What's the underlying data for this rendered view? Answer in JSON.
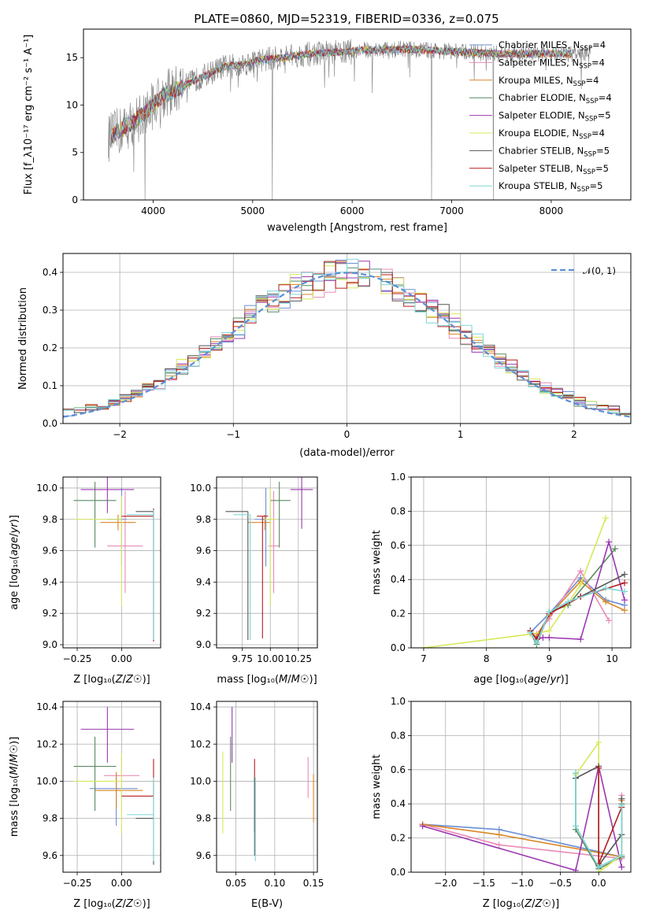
{
  "title": "PLATE=0860, MJD=52319, FIBERID=0336, z=0.075",
  "colors": {
    "Chabrier MILES": "#6b8fd6",
    "Salpeter MILES": "#e98bb8",
    "Kroupa MILES": "#d98728",
    "Chabrier ELODIE": "#5a8a62",
    "Salpeter ELODIE": "#9b38b0",
    "Kroupa ELODIE": "#d7e85a",
    "Chabrier STELIB": "#555555",
    "Salpeter STELIB": "#b31d1d",
    "Kroupa STELIB": "#7fd6d6",
    "gaussian": "#5b8fd6",
    "data": "#808080"
  },
  "chart_data": [
    {
      "id": "spectrum",
      "type": "line",
      "xlabel": "wavelength [Angstrom, rest frame]",
      "ylabel": "Flux [f_λ10⁻¹⁷ erg cm⁻² s⁻¹ A⁻¹]",
      "xlim": [
        3300,
        8800
      ],
      "ylim": [
        0,
        18
      ],
      "xticks": [
        4000,
        5000,
        6000,
        7000,
        8000
      ],
      "yticks": [
        0,
        5,
        10,
        15
      ],
      "continuum": {
        "x": [
          3550,
          3700,
          3900,
          4100,
          4300,
          4500,
          4700,
          4900,
          5100,
          5300,
          5500,
          5700,
          5900,
          6100,
          6300,
          6500,
          6700,
          6900,
          7100,
          7300,
          7400
        ],
        "y": [
          6.5,
          7.5,
          9,
          11,
          12,
          13,
          14,
          14.3,
          14.8,
          15,
          15.3,
          15.5,
          15.6,
          15.8,
          15.8,
          15.9,
          15.8,
          15.7,
          15.6,
          15.5,
          15.4
        ]
      },
      "data_x_range": [
        3550,
        8400
      ],
      "spikes": [
        {
          "x": 3920,
          "y": 0
        },
        {
          "x": 5200,
          "y": 0
        },
        {
          "x": 6800,
          "y": 0
        },
        {
          "x": 7420,
          "y": 0
        }
      ],
      "legend": [
        {
          "text": "Chabrier MILES, N",
          "sub": "SSP",
          "tail": "=4",
          "model": "Chabrier MILES"
        },
        {
          "text": "Salpeter MILES, N",
          "sub": "SSP",
          "tail": "=4",
          "model": "Salpeter MILES"
        },
        {
          "text": "Kroupa MILES, N",
          "sub": "SSP",
          "tail": "=4",
          "model": "Kroupa MILES"
        },
        {
          "text": "Chabrier ELODIE, N",
          "sub": "SSP",
          "tail": "=4",
          "model": "Chabrier ELODIE"
        },
        {
          "text": "Salpeter ELODIE, N",
          "sub": "SSP",
          "tail": "=5",
          "model": "Salpeter ELODIE"
        },
        {
          "text": "Kroupa ELODIE, N",
          "sub": "SSP",
          "tail": "=4",
          "model": "Kroupa ELODIE"
        },
        {
          "text": "Chabrier STELIB, N",
          "sub": "SSP",
          "tail": "=5",
          "model": "Chabrier STELIB"
        },
        {
          "text": "Salpeter STELIB, N",
          "sub": "SSP",
          "tail": "=5",
          "model": "Salpeter STELIB"
        },
        {
          "text": "Kroupa STELIB, N",
          "sub": "SSP",
          "tail": "=5",
          "model": "Kroupa STELIB"
        }
      ]
    },
    {
      "id": "residuals",
      "type": "histogram",
      "xlabel": "(data-model)/error",
      "ylabel": "Normed distribution",
      "xlim": [
        -2.5,
        2.5
      ],
      "ylim": [
        0,
        0.45
      ],
      "xticks": [
        -2,
        -1,
        0,
        1,
        2
      ],
      "yticks": [
        0.0,
        0.1,
        0.2,
        0.3,
        0.4
      ],
      "bin_width": 0.1,
      "grid": true,
      "legend_label": "𝒩(0, 1)"
    },
    {
      "id": "age_vs_Z",
      "type": "errorbar",
      "xlabel": "Z [log₁₀(Z/Z☉)]",
      "ylabel": "age  [log₁₀(age/yr)]",
      "xlim": [
        -0.33,
        0.22
      ],
      "ylim": [
        8.98,
        10.07
      ],
      "xticks": [
        -0.25,
        0.0
      ],
      "yticks": [
        9.0,
        9.2,
        9.4,
        9.6,
        9.8,
        10.0
      ],
      "points": [
        {
          "model": "Chabrier MILES",
          "x": 0.0,
          "xerr": [
            0.08,
            0.03
          ],
          "y": 9.8,
          "yerr": [
            0.3,
            0.2
          ]
        },
        {
          "model": "Salpeter MILES",
          "x": 0.02,
          "xerr": [
            0.1,
            0.1
          ],
          "y": 9.63,
          "yerr": [
            0.3,
            0.35
          ]
        },
        {
          "model": "Kroupa MILES",
          "x": -0.02,
          "xerr": [
            0.1,
            0.1
          ],
          "y": 9.78,
          "yerr": [
            0.05,
            0.05
          ]
        },
        {
          "model": "Chabrier ELODIE",
          "x": -0.15,
          "xerr": [
            0.12,
            0.12
          ],
          "y": 9.92,
          "yerr": [
            0.3,
            0.12
          ]
        },
        {
          "model": "Salpeter ELODIE",
          "x": -0.08,
          "xerr": [
            0.15,
            0.15
          ],
          "y": 9.99,
          "yerr": [
            0.15,
            0.1
          ]
        },
        {
          "model": "Kroupa ELODIE",
          "x": 0.0,
          "xerr": [
            0.27,
            0.0
          ],
          "y": 9.8,
          "yerr": [
            0.55,
            0.15
          ]
        },
        {
          "model": "Chabrier STELIB",
          "x": 0.18,
          "xerr": [
            0.1,
            0.0
          ],
          "y": 9.85,
          "yerr": [
            0.82,
            0.0
          ]
        },
        {
          "model": "Salpeter STELIB",
          "x": 0.18,
          "xerr": [
            0.18,
            0.0
          ],
          "y": 9.82,
          "yerr": [
            0.8,
            0.05
          ]
        },
        {
          "model": "Kroupa STELIB",
          "x": 0.18,
          "xerr": [
            0.15,
            0.0
          ],
          "y": 9.83,
          "yerr": [
            0.8,
            0.03
          ]
        }
      ]
    },
    {
      "id": "age_vs_mass",
      "type": "errorbar",
      "xlabel": "mass [log₁₀(M/M☉)]",
      "ylabel": "",
      "xlim": [
        9.52,
        10.42
      ],
      "ylim": [
        8.98,
        10.07
      ],
      "xticks": [
        9.75,
        10.0,
        10.25
      ],
      "yticks": [
        9.0,
        9.2,
        9.4,
        9.6,
        9.8,
        10.0
      ],
      "points": [
        {
          "model": "Chabrier MILES",
          "x": 9.96,
          "xerr": [
            0.1,
            0.05
          ],
          "y": 9.8,
          "yerr": [
            0.3,
            0.2
          ]
        },
        {
          "model": "Salpeter MILES",
          "x": 10.03,
          "xerr": [
            0.05,
            0.05
          ],
          "y": 9.63,
          "yerr": [
            0.3,
            0.35
          ]
        },
        {
          "model": "Kroupa MILES",
          "x": 9.95,
          "xerr": [
            0.15,
            0.05
          ],
          "y": 9.78,
          "yerr": [
            0.05,
            0.05
          ]
        },
        {
          "model": "Chabrier ELODIE",
          "x": 10.08,
          "xerr": [
            0.08,
            0.1
          ],
          "y": 9.92,
          "yerr": [
            0.3,
            0.12
          ]
        },
        {
          "model": "Salpeter ELODIE",
          "x": 10.28,
          "xerr": [
            0.1,
            0.1
          ],
          "y": 9.99,
          "yerr": [
            0.25,
            0.1
          ]
        },
        {
          "model": "Kroupa ELODIE",
          "x": 10.0,
          "xerr": [
            0.05,
            0.05
          ],
          "y": 9.8,
          "yerr": [
            0.55,
            0.2
          ]
        },
        {
          "model": "Chabrier STELIB",
          "x": 9.8,
          "xerr": [
            0.2,
            0.0
          ],
          "y": 9.85,
          "yerr": [
            0.82,
            0.0
          ]
        },
        {
          "model": "Salpeter STELIB",
          "x": 9.93,
          "xerr": [
            0.05,
            0.05
          ],
          "y": 9.82,
          "yerr": [
            0.78,
            0.0
          ]
        },
        {
          "model": "Kroupa STELIB",
          "x": 9.82,
          "xerr": [
            0.15,
            0.0
          ],
          "y": 9.83,
          "yerr": [
            0.8,
            0.0
          ]
        }
      ]
    },
    {
      "id": "massweight_vs_age",
      "type": "line",
      "xlabel": "age  [log₁₀(age/yr)]",
      "ylabel": "mass weight",
      "xlim": [
        6.8,
        10.3
      ],
      "ylim": [
        0,
        1.0
      ],
      "xticks": [
        7,
        8,
        9,
        10
      ],
      "yticks": [
        0.0,
        0.2,
        0.4,
        0.6,
        0.8,
        1.0
      ],
      "series": [
        {
          "model": "Chabrier MILES",
          "x": [
            8.7,
            9.0,
            9.5,
            9.9,
            10.2
          ],
          "y": [
            0.09,
            0.2,
            0.41,
            0.28,
            0.25
          ]
        },
        {
          "model": "Salpeter MILES",
          "x": [
            8.8,
            9.0,
            9.5,
            9.95
          ],
          "y": [
            0.08,
            0.17,
            0.45,
            0.16
          ]
        },
        {
          "model": "Kroupa MILES",
          "x": [
            8.8,
            9.0,
            9.5,
            9.9,
            10.2
          ],
          "y": [
            0.07,
            0.19,
            0.39,
            0.27,
            0.22
          ]
        },
        {
          "model": "Chabrier ELODIE",
          "x": [
            8.7,
            8.8,
            9.0,
            9.3,
            10.05
          ],
          "y": [
            0.09,
            0.02,
            0.21,
            0.25,
            0.58
          ]
        },
        {
          "model": "Salpeter ELODIE",
          "x": [
            8.8,
            8.9,
            9.0,
            9.5,
            9.95,
            10.2
          ],
          "y": [
            0.05,
            0.06,
            0.06,
            0.05,
            0.62,
            0.28
          ]
        },
        {
          "model": "Kroupa ELODIE",
          "x": [
            7.0,
            8.7,
            9.0,
            9.5,
            9.9
          ],
          "y": [
            0.0,
            0.08,
            0.1,
            0.37,
            0.76
          ]
        },
        {
          "model": "Chabrier STELIB",
          "x": [
            8.7,
            8.8,
            9.0,
            9.5,
            10.2
          ],
          "y": [
            0.1,
            0.05,
            0.2,
            0.3,
            0.43
          ]
        },
        {
          "model": "Salpeter STELIB",
          "x": [
            8.7,
            8.8,
            9.0,
            9.5,
            10.2
          ],
          "y": [
            0.1,
            0.05,
            0.2,
            0.3,
            0.38
          ]
        },
        {
          "model": "Kroupa STELIB",
          "x": [
            8.7,
            8.8,
            9.0,
            9.3,
            9.9,
            10.2
          ],
          "y": [
            0.09,
            0.03,
            0.21,
            0.27,
            0.35,
            0.33
          ]
        }
      ]
    },
    {
      "id": "mass_vs_Z",
      "type": "errorbar",
      "xlabel": "Z [log₁₀(Z/Z☉)]",
      "ylabel": "mass [log₁₀(M/M☉)]",
      "xlim": [
        -0.33,
        0.22
      ],
      "ylim": [
        9.51,
        10.43
      ],
      "xticks": [
        -0.25,
        0.0
      ],
      "yticks": [
        9.6,
        9.8,
        10.0,
        10.2,
        10.4
      ],
      "points": [
        {
          "model": "Chabrier MILES",
          "x": -0.03,
          "xerr": [
            0.15,
            0.12
          ],
          "y": 9.96,
          "yerr": [
            0.2,
            0.08
          ]
        },
        {
          "model": "Salpeter MILES",
          "x": 0.0,
          "xerr": [
            0.1,
            0.1
          ],
          "y": 10.03,
          "yerr": [
            0.1,
            0.1
          ]
        },
        {
          "model": "Kroupa MILES",
          "x": -0.03,
          "xerr": [
            0.12,
            0.15
          ],
          "y": 9.95,
          "yerr": [
            0.1,
            0.1
          ]
        },
        {
          "model": "Chabrier ELODIE",
          "x": -0.15,
          "xerr": [
            0.12,
            0.12
          ],
          "y": 10.08,
          "yerr": [
            0.24,
            0.16
          ]
        },
        {
          "model": "Salpeter ELODIE",
          "x": -0.08,
          "xerr": [
            0.15,
            0.15
          ],
          "y": 10.28,
          "yerr": [
            0.18,
            0.12
          ]
        },
        {
          "model": "Kroupa ELODIE",
          "x": 0.0,
          "xerr": [
            0.27,
            0.0
          ],
          "y": 10.0,
          "yerr": [
            0.28,
            0.15
          ]
        },
        {
          "model": "Chabrier STELIB",
          "x": 0.18,
          "xerr": [
            0.1,
            0.0
          ],
          "y": 9.8,
          "yerr": [
            0.25,
            0.2
          ]
        },
        {
          "model": "Salpeter STELIB",
          "x": 0.18,
          "xerr": [
            0.18,
            0.0
          ],
          "y": 9.92,
          "yerr": [
            0.0,
            0.2
          ]
        },
        {
          "model": "Kroupa STELIB",
          "x": 0.18,
          "xerr": [
            0.15,
            0.0
          ],
          "y": 9.82,
          "yerr": [
            0.25,
            0.2
          ]
        }
      ]
    },
    {
      "id": "mass_vs_ebv",
      "type": "errorbar",
      "xlabel": "E(B-V)",
      "ylabel": "",
      "xlim": [
        0.025,
        0.155
      ],
      "ylim": [
        9.51,
        10.43
      ],
      "xticks": [
        0.05,
        0.1,
        0.15
      ],
      "yticks": [
        9.6,
        9.8,
        10.0,
        10.2,
        10.4
      ],
      "points": [
        {
          "model": "Kroupa ELODIE",
          "x": 0.033,
          "y": 9.92,
          "yerr": [
            0.2,
            0.24
          ]
        },
        {
          "model": "Chabrier ELODIE",
          "x": 0.043,
          "y": 10.08,
          "yerr": [
            0.24,
            0.16
          ]
        },
        {
          "model": "Salpeter ELODIE",
          "x": 0.045,
          "y": 10.28,
          "yerr": [
            0.18,
            0.12
          ]
        },
        {
          "model": "Salpeter STELIB",
          "x": 0.074,
          "y": 9.98,
          "yerr": [
            0.25,
            0.14
          ]
        },
        {
          "model": "Chabrier STELIB",
          "x": 0.074,
          "y": 9.8,
          "yerr": [
            0.2,
            0.22
          ]
        },
        {
          "model": "Kroupa STELIB",
          "x": 0.075,
          "y": 9.82,
          "yerr": [
            0.25,
            0.2
          ]
        },
        {
          "model": "Salpeter MILES",
          "x": 0.143,
          "y": 10.02,
          "yerr": [
            0.11,
            0.11
          ]
        },
        {
          "model": "Kroupa MILES",
          "x": 0.15,
          "y": 9.9,
          "yerr": [
            0.12,
            0.14
          ]
        }
      ]
    },
    {
      "id": "massweight_vs_Z",
      "type": "line",
      "xlabel": "Z [log₁₀(Z/Z☉)]",
      "ylabel": "mass weight",
      "xlim": [
        -2.45,
        0.42
      ],
      "ylim": [
        0,
        1.0
      ],
      "xticks": [
        -2.0,
        -1.5,
        -1.0,
        -0.5,
        0.0
      ],
      "yticks": [
        0.0,
        0.2,
        0.4,
        0.6,
        0.8,
        1.0
      ],
      "series": [
        {
          "model": "Chabrier MILES",
          "x": [
            -2.3,
            -1.3,
            0.3
          ],
          "y": [
            0.28,
            0.25,
            0.09
          ]
        },
        {
          "model": "Salpeter MILES",
          "x": [
            -2.3,
            -1.3,
            0.3,
            0.3
          ],
          "y": [
            0.28,
            0.16,
            0.08,
            0.45
          ]
        },
        {
          "model": "Kroupa MILES",
          "x": [
            -2.3,
            -1.3,
            0.3,
            0.3
          ],
          "y": [
            0.28,
            0.22,
            0.09,
            0.42
          ]
        },
        {
          "model": "Chabrier ELODIE",
          "x": [
            -0.3,
            -0.3,
            0.0,
            0.3,
            0.3
          ],
          "y": [
            0.58,
            0.25,
            0.02,
            0.09,
            0.4
          ]
        },
        {
          "model": "Salpeter ELODIE",
          "x": [
            -2.3,
            -0.3,
            0.0,
            0.3
          ],
          "y": [
            0.27,
            0.01,
            0.62,
            0.03
          ]
        },
        {
          "model": "Kroupa ELODIE",
          "x": [
            -0.3,
            0.0,
            0.0,
            0.3
          ],
          "y": [
            0.57,
            0.76,
            0.0,
            0.1
          ]
        },
        {
          "model": "Chabrier STELIB",
          "x": [
            -0.3,
            0.0,
            0.0,
            0.3,
            0.3
          ],
          "y": [
            0.55,
            0.62,
            0.04,
            0.22,
            0.43
          ]
        },
        {
          "model": "Salpeter STELIB",
          "x": [
            0.0,
            0.0,
            0.3
          ],
          "y": [
            0.61,
            0.05,
            0.38
          ]
        },
        {
          "model": "Kroupa STELIB",
          "x": [
            -0.3,
            -0.3,
            0.0,
            0.3,
            0.3
          ],
          "y": [
            0.58,
            0.27,
            0.03,
            0.1,
            0.39
          ]
        }
      ]
    }
  ]
}
